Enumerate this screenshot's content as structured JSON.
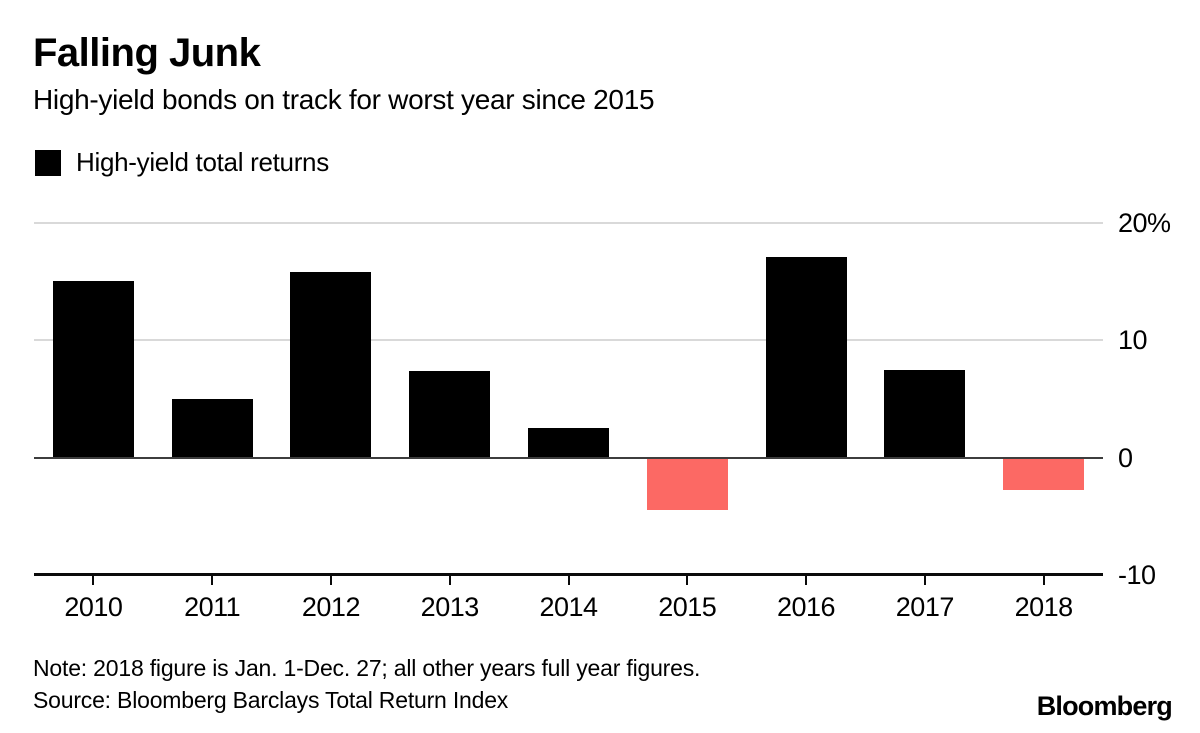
{
  "header": {
    "title": "Falling Junk",
    "subtitle": "High-yield bonds on track for worst year since 2015"
  },
  "legend": {
    "label": "High-yield total returns",
    "swatch_color": "#000000"
  },
  "chart_data": {
    "type": "bar",
    "title": "Falling Junk",
    "subtitle": "High-yield bonds on track for worst year since 2015",
    "categories": [
      "2010",
      "2011",
      "2012",
      "2013",
      "2014",
      "2015",
      "2016",
      "2017",
      "2018"
    ],
    "series": [
      {
        "name": "High-yield total returns",
        "values": [
          15.1,
          5.0,
          15.8,
          7.4,
          2.5,
          -4.5,
          17.1,
          7.5,
          -2.8
        ]
      }
    ],
    "unit": "%",
    "xlabel": "",
    "ylabel": "",
    "ylim": [
      -10,
      20
    ],
    "yticks": [
      {
        "value": 20,
        "label": "20%"
      },
      {
        "value": 10,
        "label": "10"
      },
      {
        "value": 0,
        "label": "0"
      },
      {
        "value": -10,
        "label": "-10"
      }
    ],
    "grid": true,
    "legend_position": "top-left",
    "positive_color": "#000000",
    "negative_color": "#fc6964",
    "grid_color": "#d9d9d9",
    "zero_line_color": "#3d3d3d",
    "axis_color": "#0a0a0a"
  },
  "footer": {
    "note": "Note: 2018 figure is Jan. 1-Dec. 27; all other years full year figures.",
    "source": "Source: Bloomberg Barclays Total Return Index",
    "logo": "Bloomberg"
  }
}
